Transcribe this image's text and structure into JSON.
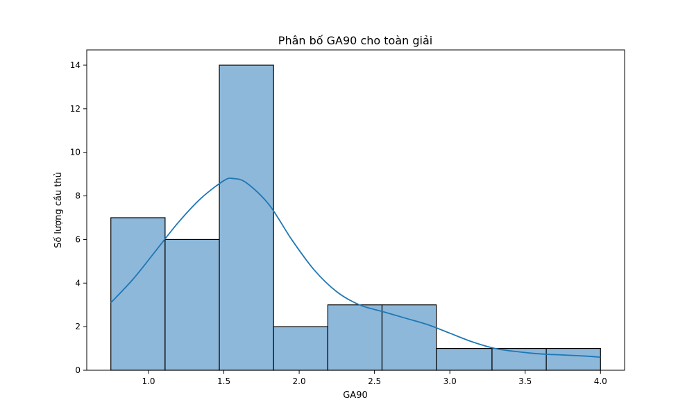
{
  "chart_data": {
    "type": "bar",
    "title": "Phân bố GA90 cho toàn giải",
    "xlabel": "GA90",
    "ylabel": "Số lượng cầu thủ",
    "xlim": [
      0.59,
      4.16
    ],
    "ylim": [
      0,
      14.7
    ],
    "xticks": [
      1.0,
      1.5,
      2.0,
      2.5,
      3.0,
      3.5,
      4.0
    ],
    "xtick_labels": [
      "1.0",
      "1.5",
      "2.0",
      "2.5",
      "3.0",
      "3.5",
      "4.0"
    ],
    "yticks": [
      0,
      2,
      4,
      6,
      8,
      10,
      12,
      14
    ],
    "ytick_labels": [
      "0",
      "2",
      "4",
      "6",
      "8",
      "10",
      "12",
      "14"
    ],
    "grid": false,
    "bins": [
      {
        "x0": 0.75,
        "x1": 1.11,
        "count": 7
      },
      {
        "x0": 1.11,
        "x1": 1.47,
        "count": 6
      },
      {
        "x0": 1.47,
        "x1": 1.83,
        "count": 14
      },
      {
        "x0": 1.83,
        "x1": 2.19,
        "count": 2
      },
      {
        "x0": 2.19,
        "x1": 2.55,
        "count": 3
      },
      {
        "x0": 2.55,
        "x1": 2.91,
        "count": 3
      },
      {
        "x0": 2.91,
        "x1": 3.28,
        "count": 1
      },
      {
        "x0": 3.28,
        "x1": 3.64,
        "count": 1
      },
      {
        "x0": 3.64,
        "x1": 4.0,
        "count": 1
      }
    ],
    "kde": {
      "x": [
        0.75,
        0.9,
        1.05,
        1.2,
        1.35,
        1.5,
        1.56,
        1.65,
        1.8,
        1.95,
        2.1,
        2.25,
        2.4,
        2.55,
        2.7,
        2.85,
        3.0,
        3.15,
        3.3,
        3.45,
        3.6,
        3.75,
        3.9,
        4.0
      ],
      "y": [
        3.1,
        4.2,
        5.5,
        6.8,
        7.9,
        8.7,
        8.8,
        8.6,
        7.6,
        6.0,
        4.6,
        3.6,
        3.0,
        2.7,
        2.4,
        2.1,
        1.7,
        1.3,
        1.0,
        0.85,
        0.75,
        0.7,
        0.65,
        0.6
      ]
    },
    "colors": {
      "bar_fill": "#8db8da",
      "bar_edge": "#000000",
      "kde_line": "#1f77b4"
    }
  }
}
